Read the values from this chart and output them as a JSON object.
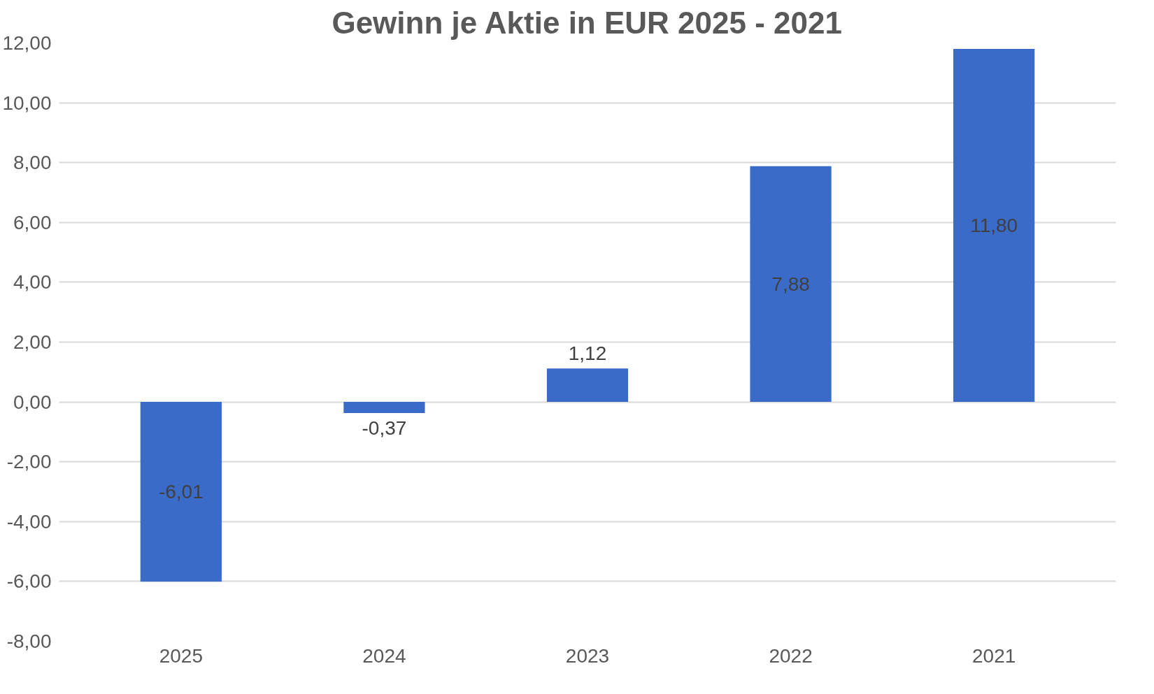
{
  "chart_data": {
    "type": "bar",
    "title": "Gewinn je Aktie in EUR 2025 - 2021",
    "categories": [
      "2025",
      "2024",
      "2023",
      "2022",
      "2021"
    ],
    "values": [
      -6.01,
      -0.37,
      1.12,
      7.88,
      11.8
    ],
    "value_labels": [
      "-6,01",
      "-0,37",
      "1,12",
      "7,88",
      "11,80"
    ],
    "color": "#3a6bc8",
    "ylim": [
      -8,
      12
    ],
    "yticks": [
      {
        "value": -8,
        "label": "-8,00"
      },
      {
        "value": -6,
        "label": "-6,00"
      },
      {
        "value": -4,
        "label": "-4,00"
      },
      {
        "value": -2,
        "label": "-2,00"
      },
      {
        "value": 0,
        "label": "0,00"
      },
      {
        "value": 2,
        "label": "2,00"
      },
      {
        "value": 4,
        "label": "4,00"
      },
      {
        "value": 6,
        "label": "6,00"
      },
      {
        "value": 8,
        "label": "8,00"
      },
      {
        "value": 10,
        "label": "10,00"
      },
      {
        "value": 12,
        "label": "12,00"
      }
    ],
    "grid": "y"
  }
}
